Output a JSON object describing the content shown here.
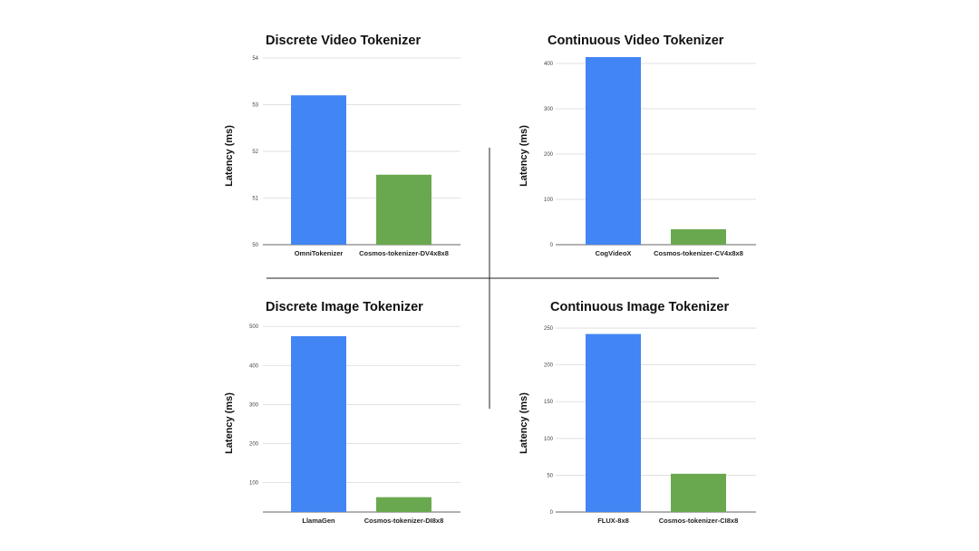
{
  "colors": {
    "blue": "#4285f4",
    "green": "#6aa84f"
  },
  "chart_data": [
    {
      "type": "bar",
      "title": "Discrete Video Tokenizer",
      "ylabel": "Latency (ms)",
      "xlabel": "",
      "categories": [
        "OmniTokenizer",
        "Cosmos-tokenizer-DV4x8x8"
      ],
      "values": [
        53.2,
        51.5
      ],
      "ylim": [
        50,
        54
      ],
      "yticks": [
        50,
        51,
        52,
        53,
        54
      ],
      "colors": [
        "#4285f4",
        "#6aa84f"
      ],
      "grid": true
    },
    {
      "type": "bar",
      "title": "Continuous Video Tokenizer",
      "ylabel": "Latency (ms)",
      "xlabel": "",
      "categories": [
        "CogVideoX",
        "Cosmos-tokenizer-CV4x8x8"
      ],
      "values": [
        414,
        34
      ],
      "ylim": [
        0,
        420
      ],
      "yticks": [
        0,
        100,
        200,
        300,
        400
      ],
      "colors": [
        "#4285f4",
        "#6aa84f"
      ],
      "grid": true
    },
    {
      "type": "bar",
      "title": "Discrete Image Tokenizer",
      "ylabel": "Latency (ms)",
      "xlabel": "",
      "categories": [
        "LlamaGen",
        "Cosmos-tokenizer-DI8x8"
      ],
      "values": [
        475,
        63
      ],
      "ylim": [
        25,
        505
      ],
      "yticks": [
        100,
        200,
        300,
        400,
        500
      ],
      "colors": [
        "#4285f4",
        "#6aa84f"
      ],
      "grid": true
    },
    {
      "type": "bar",
      "title": "Continuous Image Tokenizer",
      "ylabel": "Latency (ms)",
      "xlabel": "",
      "categories": [
        "FLUX-8x8",
        "Cosmos-tokenizer-CI8x8"
      ],
      "values": [
        242,
        52
      ],
      "ylim": [
        0,
        255
      ],
      "yticks": [
        0,
        50,
        100,
        150,
        200,
        250
      ],
      "colors": [
        "#4285f4",
        "#6aa84f"
      ],
      "grid": true
    }
  ]
}
